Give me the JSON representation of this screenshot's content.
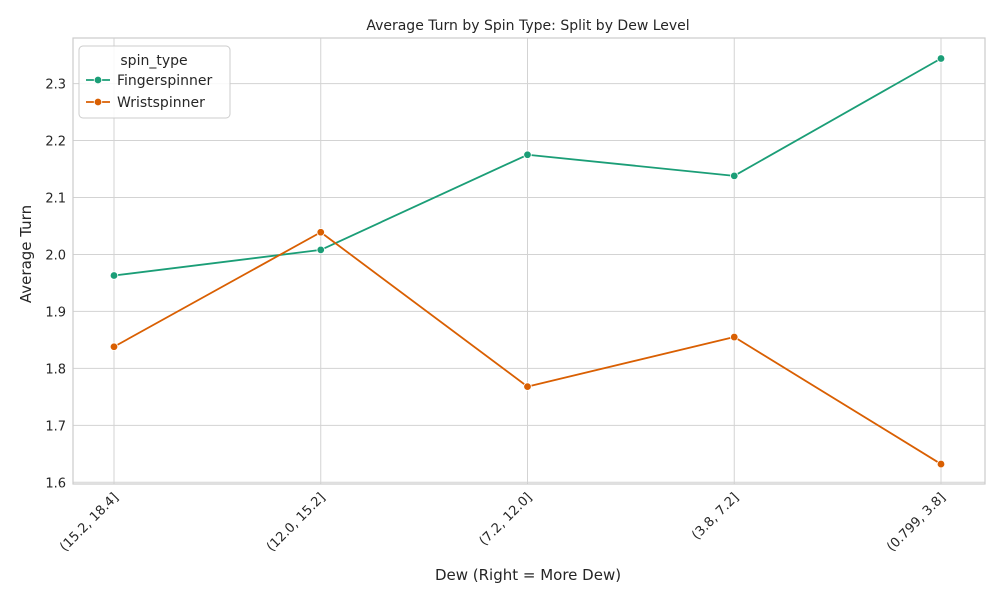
{
  "chart_data": {
    "type": "line",
    "title": "Average Turn by Spin Type: Split by Dew Level",
    "xlabel": "Dew (Right = More Dew)",
    "ylabel": "Average Turn",
    "categories": [
      "(15.2, 18.4]",
      "(12.0, 15.2]",
      "(7.2, 12.0]",
      "(3.8, 7.2]",
      "(0.799, 3.8]"
    ],
    "ylim": [
      1.597,
      2.38
    ],
    "yticks": [
      "1.6",
      "1.7",
      "1.8",
      "1.9",
      "2.0",
      "2.1",
      "2.2",
      "2.3"
    ],
    "grid": true,
    "legend": {
      "title": "spin_type",
      "placement": "top-left"
    },
    "series": [
      {
        "name": "Fingerspinner",
        "color": "#1b9e77",
        "values": [
          1.963,
          2.008,
          2.175,
          2.138,
          2.344
        ]
      },
      {
        "name": "Wristspinner",
        "color": "#d95f02",
        "values": [
          1.838,
          2.039,
          1.768,
          1.855,
          1.632
        ]
      }
    ]
  }
}
